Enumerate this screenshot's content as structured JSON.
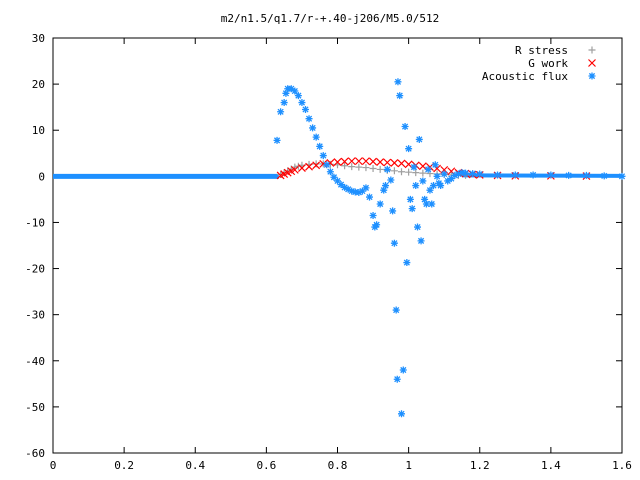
{
  "chart_data": {
    "type": "scatter",
    "title": "m2/n1.5/q1.7/r-+.40-j206/M5.0/512",
    "xlim": [
      0,
      1.6
    ],
    "ylim": [
      -60,
      30
    ],
    "x_ticks": [
      "0",
      "0.2",
      "0.4",
      "0.6",
      "0.8",
      "1",
      "1.2",
      "1.4",
      "1.6"
    ],
    "y_ticks": [
      "30",
      "20",
      "10",
      "0",
      "-10",
      "-20",
      "-30",
      "-40",
      "-50",
      "-60"
    ],
    "legend_position": "top-right",
    "series": [
      {
        "name": "R stress",
        "marker": "plus",
        "color": "#a0a0a0",
        "points": [
          [
            0.64,
            0.4
          ],
          [
            0.65,
            0.8
          ],
          [
            0.66,
            1.2
          ],
          [
            0.67,
            1.6
          ],
          [
            0.68,
            2.0
          ],
          [
            0.69,
            2.2
          ],
          [
            0.7,
            2.4
          ],
          [
            0.72,
            2.6
          ],
          [
            0.74,
            2.7
          ],
          [
            0.76,
            2.7
          ],
          [
            0.78,
            2.6
          ],
          [
            0.8,
            2.5
          ],
          [
            0.82,
            2.3
          ],
          [
            0.84,
            2.1
          ],
          [
            0.86,
            2.0
          ],
          [
            0.88,
            1.9
          ],
          [
            0.9,
            1.7
          ],
          [
            0.92,
            1.5
          ],
          [
            0.94,
            1.3
          ],
          [
            0.96,
            1.2
          ],
          [
            0.98,
            1.0
          ],
          [
            1.0,
            0.9
          ],
          [
            1.02,
            0.8
          ],
          [
            1.04,
            0.7
          ],
          [
            1.06,
            0.6
          ],
          [
            1.08,
            0.5
          ],
          [
            1.1,
            0.4
          ],
          [
            1.12,
            0.3
          ],
          [
            1.14,
            0.2
          ],
          [
            1.16,
            0.2
          ]
        ]
      },
      {
        "name": "G work",
        "marker": "cross",
        "color": "#ff0000",
        "points": [
          [
            0.64,
            0.2
          ],
          [
            0.65,
            0.5
          ],
          [
            0.66,
            0.8
          ],
          [
            0.67,
            1.1
          ],
          [
            0.68,
            1.4
          ],
          [
            0.7,
            1.8
          ],
          [
            0.72,
            2.1
          ],
          [
            0.74,
            2.4
          ],
          [
            0.76,
            2.7
          ],
          [
            0.78,
            2.9
          ],
          [
            0.8,
            3.1
          ],
          [
            0.82,
            3.2
          ],
          [
            0.84,
            3.3
          ],
          [
            0.86,
            3.3
          ],
          [
            0.88,
            3.3
          ],
          [
            0.9,
            3.2
          ],
          [
            0.92,
            3.1
          ],
          [
            0.94,
            3.0
          ],
          [
            0.96,
            2.9
          ],
          [
            0.98,
            2.8
          ],
          [
            1.0,
            2.6
          ],
          [
            1.02,
            2.4
          ],
          [
            1.04,
            2.2
          ],
          [
            1.06,
            2.0
          ],
          [
            1.08,
            1.7
          ],
          [
            1.1,
            1.4
          ],
          [
            1.12,
            1.1
          ],
          [
            1.14,
            0.8
          ],
          [
            1.16,
            0.6
          ],
          [
            1.18,
            0.4
          ],
          [
            1.2,
            0.3
          ],
          [
            1.25,
            0.2
          ],
          [
            1.3,
            0.1
          ],
          [
            1.4,
            0.1
          ],
          [
            1.5,
            0.05
          ]
        ]
      },
      {
        "name": "Acoustic flux",
        "marker": "star",
        "color": "#1e90ff",
        "points": [
          [
            0.63,
            7.8
          ],
          [
            0.64,
            14
          ],
          [
            0.65,
            16
          ],
          [
            0.655,
            18
          ],
          [
            0.66,
            19
          ],
          [
            0.67,
            19
          ],
          [
            0.68,
            18.5
          ],
          [
            0.69,
            17.5
          ],
          [
            0.7,
            16
          ],
          [
            0.71,
            14.5
          ],
          [
            0.72,
            12.5
          ],
          [
            0.73,
            10.5
          ],
          [
            0.74,
            8.5
          ],
          [
            0.75,
            6.5
          ],
          [
            0.76,
            4.5
          ],
          [
            0.77,
            2.5
          ],
          [
            0.78,
            1
          ],
          [
            0.79,
            -0.2
          ],
          [
            0.8,
            -1
          ],
          [
            0.81,
            -1.8
          ],
          [
            0.82,
            -2.4
          ],
          [
            0.83,
            -2.8
          ],
          [
            0.84,
            -3.2
          ],
          [
            0.85,
            -3.4
          ],
          [
            0.86,
            -3.5
          ],
          [
            0.87,
            -3.2
          ],
          [
            0.88,
            -2.5
          ],
          [
            0.89,
            -4.5
          ],
          [
            0.9,
            -8.5
          ],
          [
            0.905,
            -11
          ],
          [
            0.91,
            -10.5
          ],
          [
            0.92,
            -6
          ],
          [
            0.93,
            -3
          ],
          [
            0.935,
            -2
          ],
          [
            0.94,
            1.5
          ],
          [
            0.95,
            -0.8
          ],
          [
            0.955,
            -7.5
          ],
          [
            0.96,
            -14.5
          ],
          [
            0.965,
            -29
          ],
          [
            0.968,
            -44
          ],
          [
            0.97,
            20.5
          ],
          [
            0.975,
            17.5
          ],
          [
            0.98,
            -51.5
          ],
          [
            0.985,
            -42
          ],
          [
            0.99,
            10.8
          ],
          [
            0.995,
            -18.7
          ],
          [
            1.0,
            6
          ],
          [
            1.005,
            -5
          ],
          [
            1.01,
            -7
          ],
          [
            1.015,
            2
          ],
          [
            1.02,
            -2
          ],
          [
            1.025,
            -11
          ],
          [
            1.03,
            8
          ],
          [
            1.035,
            -14
          ],
          [
            1.04,
            -1
          ],
          [
            1.045,
            -5
          ],
          [
            1.05,
            -6
          ],
          [
            1.055,
            1.5
          ],
          [
            1.06,
            -3
          ],
          [
            1.065,
            -6
          ],
          [
            1.07,
            -2
          ],
          [
            1.075,
            2.5
          ],
          [
            1.08,
            0
          ],
          [
            1.085,
            -1.5
          ],
          [
            1.09,
            -2
          ],
          [
            1.1,
            0.5
          ],
          [
            1.11,
            -1
          ],
          [
            1.12,
            -0.5
          ],
          [
            1.13,
            0.2
          ],
          [
            1.14,
            0.5
          ],
          [
            1.15,
            0.8
          ],
          [
            1.16,
            0.7
          ],
          [
            1.18,
            0.6
          ],
          [
            1.2,
            0.5
          ],
          [
            1.25,
            0.3
          ],
          [
            1.3,
            0.3
          ],
          [
            1.35,
            0.3
          ],
          [
            1.4,
            0.3
          ],
          [
            1.45,
            0.2
          ],
          [
            1.5,
            0.2
          ],
          [
            1.55,
            0.1
          ],
          [
            1.6,
            0.0
          ]
        ]
      }
    ]
  }
}
